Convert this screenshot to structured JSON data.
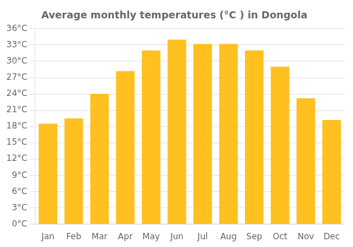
{
  "chart_data": {
    "type": "bar",
    "title": "Average monthly temperatures (°C ) in Dongola",
    "categories": [
      "Jan",
      "Feb",
      "Mar",
      "Apr",
      "May",
      "Jun",
      "Jul",
      "Aug",
      "Sep",
      "Oct",
      "Nov",
      "Dec"
    ],
    "values": [
      18.5,
      19.5,
      24.0,
      28.2,
      32.0,
      34.0,
      33.2,
      33.2,
      32.0,
      29.0,
      23.2,
      19.2
    ],
    "color": "#FFC020",
    "ylim": [
      0,
      36
    ],
    "yticks": [
      {
        "value": 0,
        "label": "0°C"
      },
      {
        "value": 3,
        "label": "3°C"
      },
      {
        "value": 6,
        "label": "6°C"
      },
      {
        "value": 9,
        "label": "9°C"
      },
      {
        "value": 12,
        "label": "12°C"
      },
      {
        "value": 15,
        "label": "15°C"
      },
      {
        "value": 18,
        "label": "18°C"
      },
      {
        "value": 21,
        "label": "21°C"
      },
      {
        "value": 24,
        "label": "24°C"
      },
      {
        "value": 27,
        "label": "27°C"
      },
      {
        "value": 30,
        "label": "30°C"
      },
      {
        "value": 33,
        "label": "33°C"
      },
      {
        "value": 36,
        "label": "36°C"
      }
    ],
    "grid": true
  }
}
